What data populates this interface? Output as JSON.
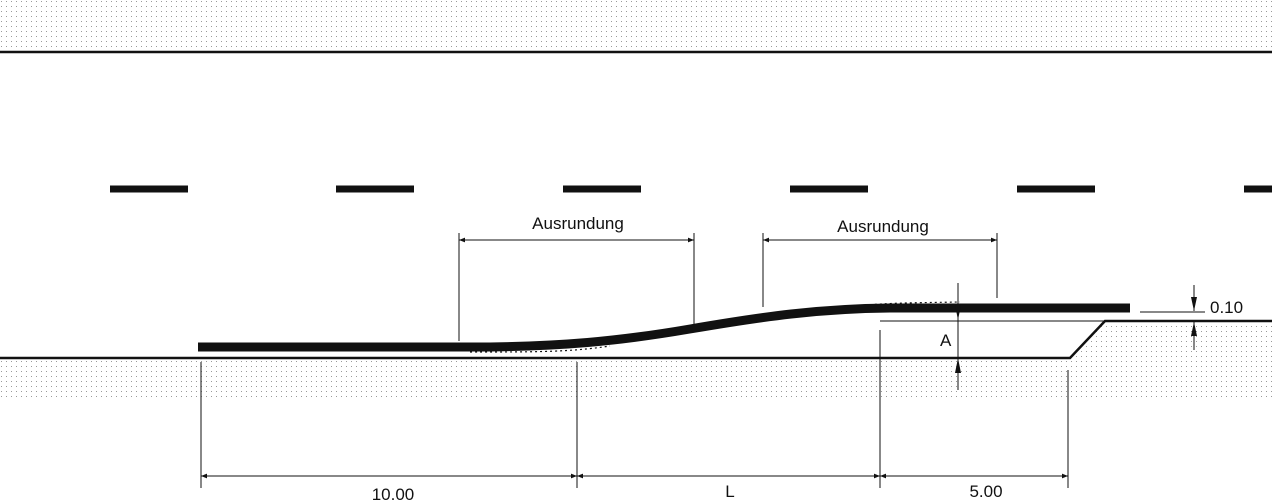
{
  "labels": {
    "rounding_left": "Ausrundung",
    "rounding_right": "Ausrundung",
    "offset_label": "A",
    "height_label": "0.10",
    "dim_start": "10.00",
    "dim_transition": "L",
    "dim_end": "5.00"
  },
  "colors": {
    "line": "#111111",
    "background": "#ffffff",
    "stipple": "#9a9a9a"
  }
}
